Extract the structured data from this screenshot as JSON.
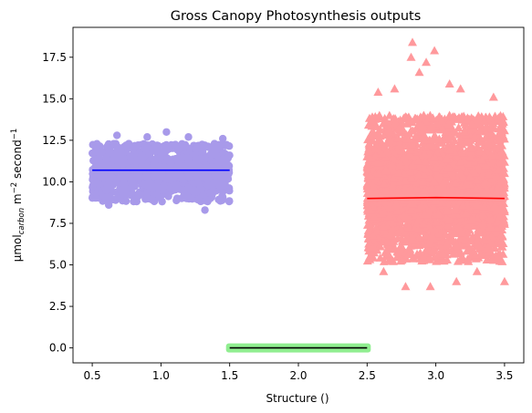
{
  "chart_data": {
    "type": "scatter",
    "title": "Gross Canopy Photosynthesis outputs",
    "xlabel": "Structure ()",
    "ylabel": {
      "prefix": "μmol",
      "subscript": "carbon",
      "unit_a": " m",
      "sup_a": "−2",
      "unit_b": " second",
      "sup_b": "−1"
    },
    "xlim": [
      0.36,
      3.64
    ],
    "ylim": [
      -0.9,
      19.3
    ],
    "xticks": [
      0.5,
      1.0,
      1.5,
      2.0,
      2.5,
      3.0,
      3.5
    ],
    "xtick_labels": [
      "0.5",
      "1.0",
      "1.5",
      "2.0",
      "2.5",
      "3.0",
      "3.5"
    ],
    "yticks": [
      0.0,
      2.5,
      5.0,
      7.5,
      10.0,
      12.5,
      15.0,
      17.5
    ],
    "ytick_labels": [
      "0.0",
      "2.5",
      "5.0",
      "7.5",
      "10.0",
      "12.5",
      "15.0",
      "17.5"
    ],
    "grid": false,
    "series": [
      {
        "marker": "circle",
        "color": "#a89aea",
        "line_color": "#0000ff",
        "x_range": [
          0.5,
          1.5
        ],
        "y_core": [
          8.8,
          12.3
        ],
        "y_outliers": [
          [
            0.62,
            8.6
          ],
          [
            0.68,
            12.8
          ],
          [
            0.9,
            12.7
          ],
          [
            1.04,
            13.0
          ],
          [
            1.2,
            12.7
          ],
          [
            1.32,
            8.3
          ],
          [
            1.45,
            12.6
          ]
        ],
        "mean_line": [
          [
            0.5,
            10.7
          ],
          [
            1.5,
            10.7
          ]
        ]
      },
      {
        "marker": "square",
        "color": "#90ee90",
        "line_color": "#000000",
        "x_range": [
          1.5,
          2.5
        ],
        "y_core": [
          0.0,
          0.0
        ],
        "mean_line": [
          [
            1.5,
            0.0
          ],
          [
            2.5,
            0.0
          ]
        ]
      },
      {
        "marker": "triangle",
        "color": "#ff999c",
        "line_color": "#ff0000",
        "x_range": [
          2.5,
          3.5
        ],
        "y_core": [
          5.2,
          14.0
        ],
        "y_outliers": [
          [
            2.83,
            18.4
          ],
          [
            2.82,
            17.5
          ],
          [
            2.93,
            17.2
          ],
          [
            2.99,
            17.9
          ],
          [
            2.88,
            16.6
          ],
          [
            2.7,
            15.6
          ],
          [
            2.58,
            15.4
          ],
          [
            3.1,
            15.9
          ],
          [
            3.18,
            15.6
          ],
          [
            3.42,
            15.1
          ],
          [
            2.78,
            3.7
          ],
          [
            2.96,
            3.7
          ],
          [
            3.15,
            4.0
          ],
          [
            3.5,
            4.0
          ],
          [
            2.62,
            4.6
          ],
          [
            3.3,
            4.6
          ]
        ],
        "mean_line": [
          [
            2.5,
            9.0
          ],
          [
            3.0,
            9.05
          ],
          [
            3.5,
            9.0
          ]
        ]
      }
    ]
  }
}
